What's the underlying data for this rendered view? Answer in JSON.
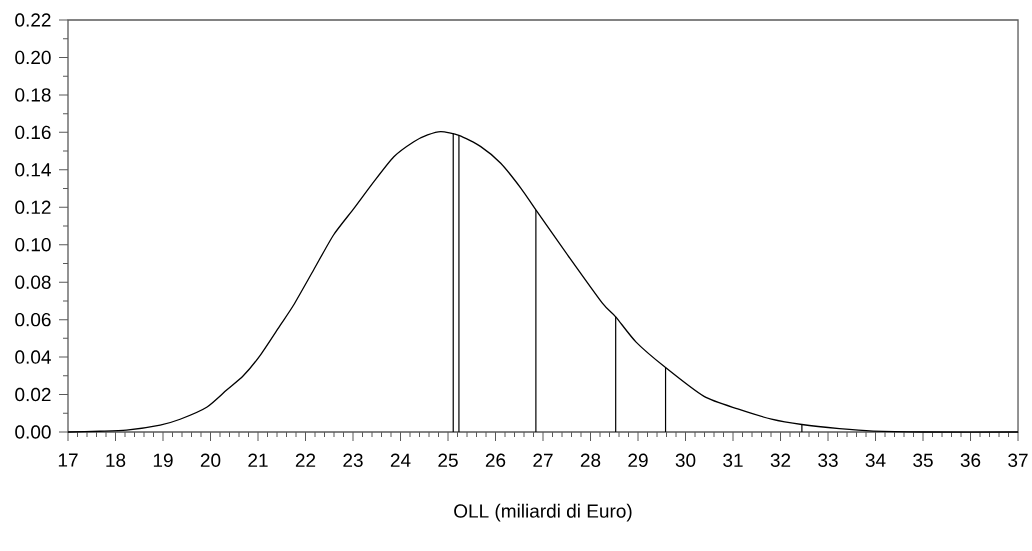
{
  "chart_data": {
    "type": "line",
    "xlabel": "OLL (miliardi di Euro)",
    "xlim": [
      17,
      37
    ],
    "ylim": [
      0,
      0.22
    ],
    "marker": "none",
    "line_style": "solid",
    "xticks": [
      17,
      18,
      19,
      20,
      21,
      22,
      23,
      24,
      25,
      26,
      27,
      28,
      29,
      30,
      31,
      32,
      33,
      34,
      35,
      36,
      37
    ],
    "yticks": [
      {
        "value": 0,
        "label": "0.00"
      },
      {
        "value": 0.02,
        "label": "0.02"
      },
      {
        "value": 0.04,
        "label": "0.04"
      },
      {
        "value": 0.06,
        "label": "0.06"
      },
      {
        "value": 0.08,
        "label": "0.08"
      },
      {
        "value": 0.1,
        "label": "0.10"
      },
      {
        "value": 0.12,
        "label": "0.12"
      },
      {
        "value": 0.14,
        "label": "0.14"
      },
      {
        "value": 0.16,
        "label": "0.16"
      },
      {
        "value": 0.18,
        "label": "0.18"
      },
      {
        "value": 0.2,
        "label": "0.20"
      },
      {
        "value": 0.22,
        "label": "0.22"
      }
    ],
    "series": [
      {
        "color": "#000000",
        "x": [
          17.0,
          17.67,
          18.23,
          18.94,
          19.36,
          19.92,
          20.34,
          20.69,
          21.05,
          21.47,
          21.75,
          22.17,
          22.59,
          23.02,
          23.44,
          23.86,
          24.28,
          24.57,
          24.85,
          25.23,
          25.69,
          26.11,
          26.54,
          26.85,
          27.53,
          28.25,
          28.53,
          28.96,
          29.58,
          30.39,
          31.1,
          31.81,
          32.45,
          33.24,
          33.95,
          35.02,
          37.0
        ],
        "values": [
          0.0,
          0.0004,
          0.001,
          0.0037,
          0.0068,
          0.0132,
          0.0224,
          0.03,
          0.0411,
          0.0571,
          0.0678,
          0.0865,
          0.1052,
          0.1194,
          0.1337,
          0.147,
          0.155,
          0.1586,
          0.1604,
          0.1584,
          0.1524,
          0.1435,
          0.13,
          0.1186,
          0.0941,
          0.0688,
          0.0615,
          0.048,
          0.0344,
          0.019,
          0.0123,
          0.0069,
          0.004,
          0.0018,
          0.0005,
          0.0,
          0.0
        ]
      },
      {
        "type": "bar",
        "color": "#000000",
        "x": [
          25.11,
          25.23,
          26.85,
          28.53,
          29.58,
          32.45
        ],
        "values": [
          0.1595,
          0.1584,
          0.1186,
          0.0615,
          0.0344,
          0.004
        ]
      }
    ]
  }
}
